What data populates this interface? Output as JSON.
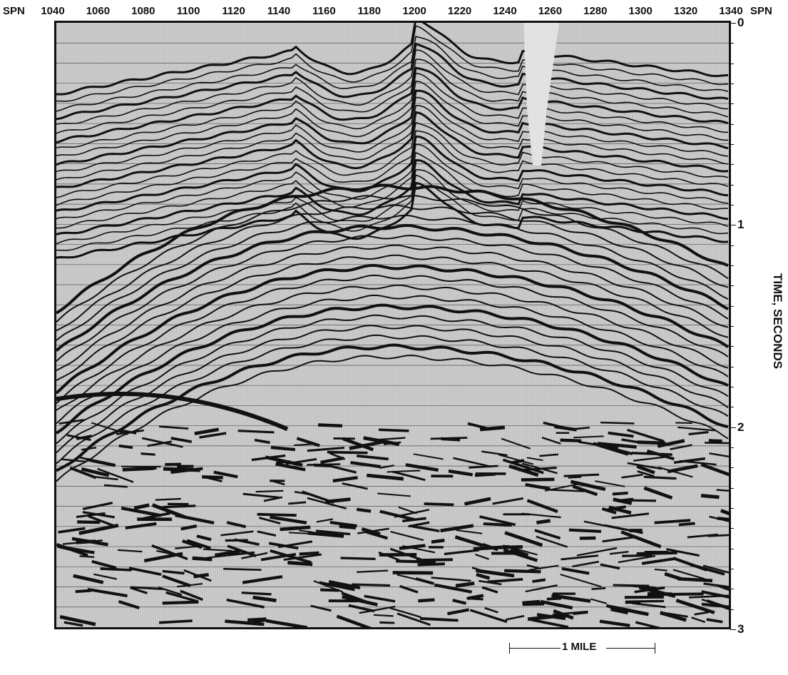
{
  "header": {
    "left_label": "SPN",
    "right_label": "SPN",
    "shotpoints": [
      "1040",
      "1060",
      "1080",
      "1100",
      "1120",
      "1140",
      "1160",
      "1180",
      "1200",
      "1220",
      "1240",
      "1260",
      "1280",
      "1300",
      "1320",
      "1340"
    ]
  },
  "time_axis": {
    "title": "TIME, SECONDS",
    "ticks": [
      "0",
      "1",
      "2",
      "3"
    ]
  },
  "scale_bar": {
    "label": "1 MILE"
  },
  "colors": {
    "ink": "#111111",
    "paper": "#ffffff",
    "section_background": "#cfcfcf"
  }
}
